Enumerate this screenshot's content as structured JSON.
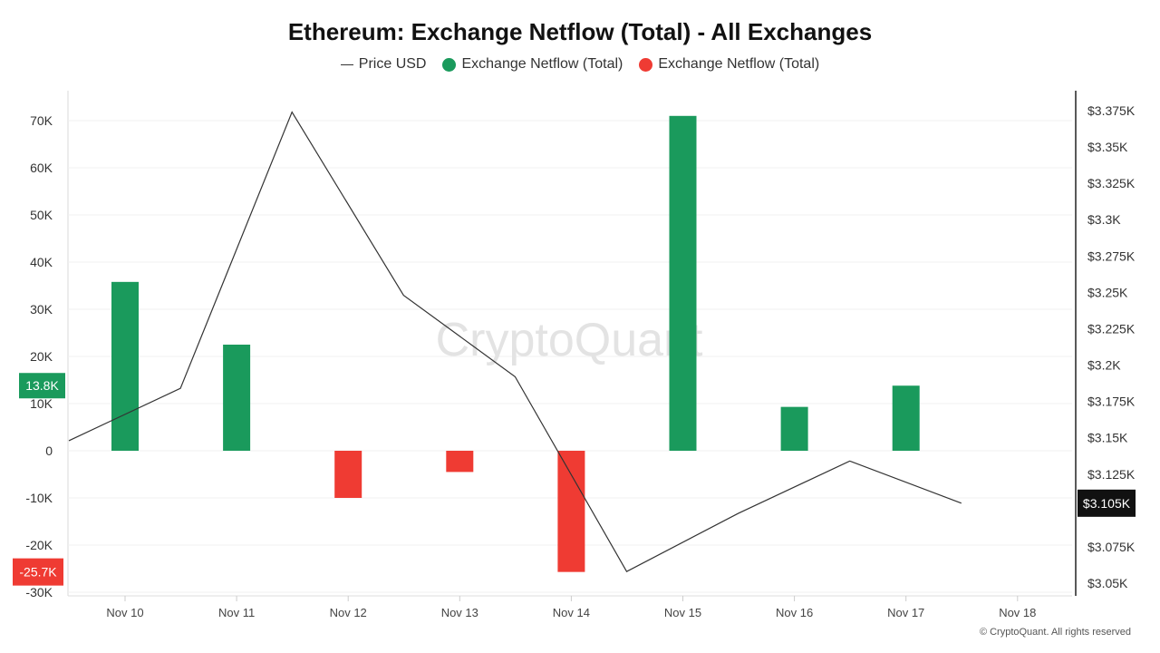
{
  "chart_data": {
    "type": "bar",
    "title": "Ethereum: Exchange Netflow (Total) - All Exchanges",
    "watermark": "CryptoQuant",
    "copyright": "© CryptoQuant. All rights reserved",
    "legend": [
      {
        "label": "Price USD",
        "kind": "line",
        "color": "#333333"
      },
      {
        "label": "Exchange Netflow (Total)",
        "kind": "dot",
        "color": "#1a9a5c"
      },
      {
        "label": "Exchange Netflow (Total)",
        "kind": "dot",
        "color": "#ef3b33"
      }
    ],
    "x_ticks": [
      "Nov 10",
      "Nov 11",
      "Nov 12",
      "Nov 13",
      "Nov 14",
      "Nov 15",
      "Nov 16",
      "Nov 17",
      "Nov 18"
    ],
    "y_left": {
      "ticks": [
        70000,
        60000,
        50000,
        40000,
        30000,
        20000,
        10000,
        0,
        -10000,
        -20000,
        -30000
      ],
      "tick_labels": [
        "70K",
        "60K",
        "50K",
        "40K",
        "30K",
        "20K",
        "10K",
        "0",
        "-10K",
        "-20K",
        "-30K"
      ],
      "range": [
        -30000,
        70000
      ]
    },
    "y_right": {
      "ticks": [
        3375,
        3350,
        3325,
        3300,
        3275,
        3250,
        3225,
        3200,
        3175,
        3150,
        3125,
        3075,
        3050
      ],
      "tick_labels": [
        "$3.375K",
        "$3.35K",
        "$3.325K",
        "$3.3K",
        "$3.275K",
        "$3.25K",
        "$3.225K",
        "$3.2K",
        "$3.175K",
        "$3.15K",
        "$3.125K",
        "$3.075K",
        "$3.05K"
      ],
      "range": [
        3050,
        3375
      ]
    },
    "bars": [
      {
        "x": "Nov 10",
        "value": 35800,
        "color": "#1a9a5c"
      },
      {
        "x": "Nov 11",
        "value": 22500,
        "color": "#1a9a5c"
      },
      {
        "x": "Nov 12",
        "value": -10000,
        "color": "#ef3b33"
      },
      {
        "x": "Nov 13",
        "value": -4500,
        "color": "#ef3b33"
      },
      {
        "x": "Nov 14",
        "value": -25700,
        "color": "#ef3b33"
      },
      {
        "x": "Nov 15",
        "value": 71000,
        "color": "#1a9a5c"
      },
      {
        "x": "Nov 16",
        "value": 9300,
        "color": "#1a9a5c"
      },
      {
        "x": "Nov 17",
        "value": 13800,
        "color": "#1a9a5c"
      }
    ],
    "price_line": [
      {
        "x": "Nov 09 12:00",
        "value": 3148
      },
      {
        "x": "Nov 10 12:00",
        "value": 3184
      },
      {
        "x": "Nov 11 12:00",
        "value": 3374
      },
      {
        "x": "Nov 12 12:00",
        "value": 3248
      },
      {
        "x": "Nov 13 12:00",
        "value": 3192
      },
      {
        "x": "Nov 14 12:00",
        "value": 3058
      },
      {
        "x": "Nov 15 12:00",
        "value": 3098
      },
      {
        "x": "Nov 16 12:00",
        "value": 3134
      },
      {
        "x": "Nov 17 12:00",
        "value": 3105
      }
    ],
    "markers": {
      "left": {
        "label": "13.8K",
        "value": 13800,
        "color": "#1a9a5c"
      },
      "left_min": {
        "label": "-25.7K",
        "value": -25700,
        "color": "#ef3b33"
      },
      "right": {
        "label": "$3.105K",
        "value": 3105,
        "color": "#111111"
      }
    }
  }
}
